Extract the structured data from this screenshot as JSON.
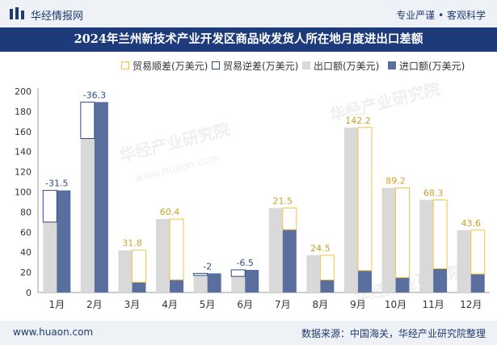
{
  "header": {
    "brand": "华经情报网",
    "slogan": "专业严谨 • 客观科学"
  },
  "footer": {
    "website": "www.huaon.com",
    "source": "数据来源：中国海关，华经产业研究院整理"
  },
  "watermark": {
    "text": "华经产业研究院",
    "url": "www.huaon.com"
  },
  "colors": {
    "header_bg": "#eef1f6",
    "title_bg": "#1d3a7a",
    "surplus": "#f5c242",
    "deficit": "#2d4b86",
    "export": "#d9d9d9",
    "import": "#5b6f9e"
  },
  "chart_data": {
    "type": "bar",
    "title": "2024年兰州新技术产业开发区商品收发货人所在地月度进出口差额",
    "categories": [
      "1月",
      "2月",
      "3月",
      "4月",
      "5月",
      "6月",
      "7月",
      "8月",
      "9月",
      "10月",
      "11月",
      "12月"
    ],
    "series": [
      {
        "name": "出口额(万美元)",
        "values": [
          70,
          153,
          42,
          73,
          17,
          16,
          84,
          37,
          164,
          104,
          92,
          62
        ]
      },
      {
        "name": "进口额(万美元)",
        "values": [
          101.5,
          189.3,
          10.2,
          12.6,
          19,
          22.5,
          62.5,
          12.5,
          21.8,
          14.8,
          23.7,
          18.4
        ]
      }
    ],
    "balance": {
      "labels": [
        "-31.5",
        "-36.3",
        "31.8",
        "60.4",
        "-2",
        "-6.5",
        "21.5",
        "24.5",
        "142.2",
        "89.2",
        "68.3",
        "43.6"
      ],
      "values": [
        -31.5,
        -36.3,
        31.8,
        60.4,
        -2,
        -6.5,
        21.5,
        24.5,
        142.2,
        89.2,
        68.3,
        43.6
      ],
      "surplus_name": "贸易顺差(万美元)",
      "deficit_name": "贸易逆差(万美元)"
    },
    "legend": [
      "贸易顺差(万美元)",
      "贸易逆差(万美元)",
      "出口额(万美元)",
      "进口额(万美元)"
    ],
    "yticks": [
      "0",
      "20",
      "40",
      "60",
      "80",
      "100",
      "120",
      "140",
      "160",
      "180",
      "200"
    ],
    "ylim": [
      0,
      200
    ],
    "xlabel": "",
    "ylabel": "",
    "legend_position": "top"
  }
}
